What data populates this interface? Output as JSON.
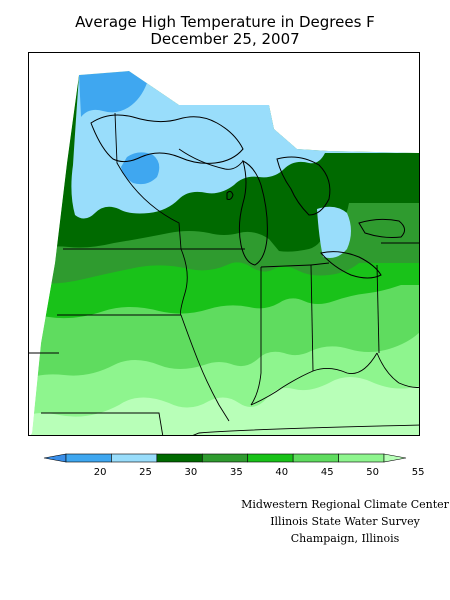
{
  "title": {
    "line1": "Average High Temperature in Degrees F",
    "line2": "December 25, 2007"
  },
  "legend": {
    "tick_labels": [
      "20",
      "25",
      "30",
      "35",
      "40",
      "45",
      "50",
      "55"
    ],
    "bins": [
      {
        "range": "<20",
        "color": "#3a8ee8"
      },
      {
        "range": "20-25",
        "color": "#3fa7f0"
      },
      {
        "range": "25-30",
        "color": "#99ddfb"
      },
      {
        "range": "30-35",
        "color": "#006a00"
      },
      {
        "range": "35-40",
        "color": "#2f9b2f"
      },
      {
        "range": "40-45",
        "color": "#19c219"
      },
      {
        "range": "45-50",
        "color": "#5fdc5f"
      },
      {
        "range": "50-55",
        "color": "#8ef58e"
      },
      {
        "range": ">55",
        "color": "#b8ffb8"
      }
    ]
  },
  "credits": {
    "line1": "Midwestern Regional Climate Center",
    "line2": "Illinois State Water Survey",
    "line3": "Champaign, Illinois"
  }
}
